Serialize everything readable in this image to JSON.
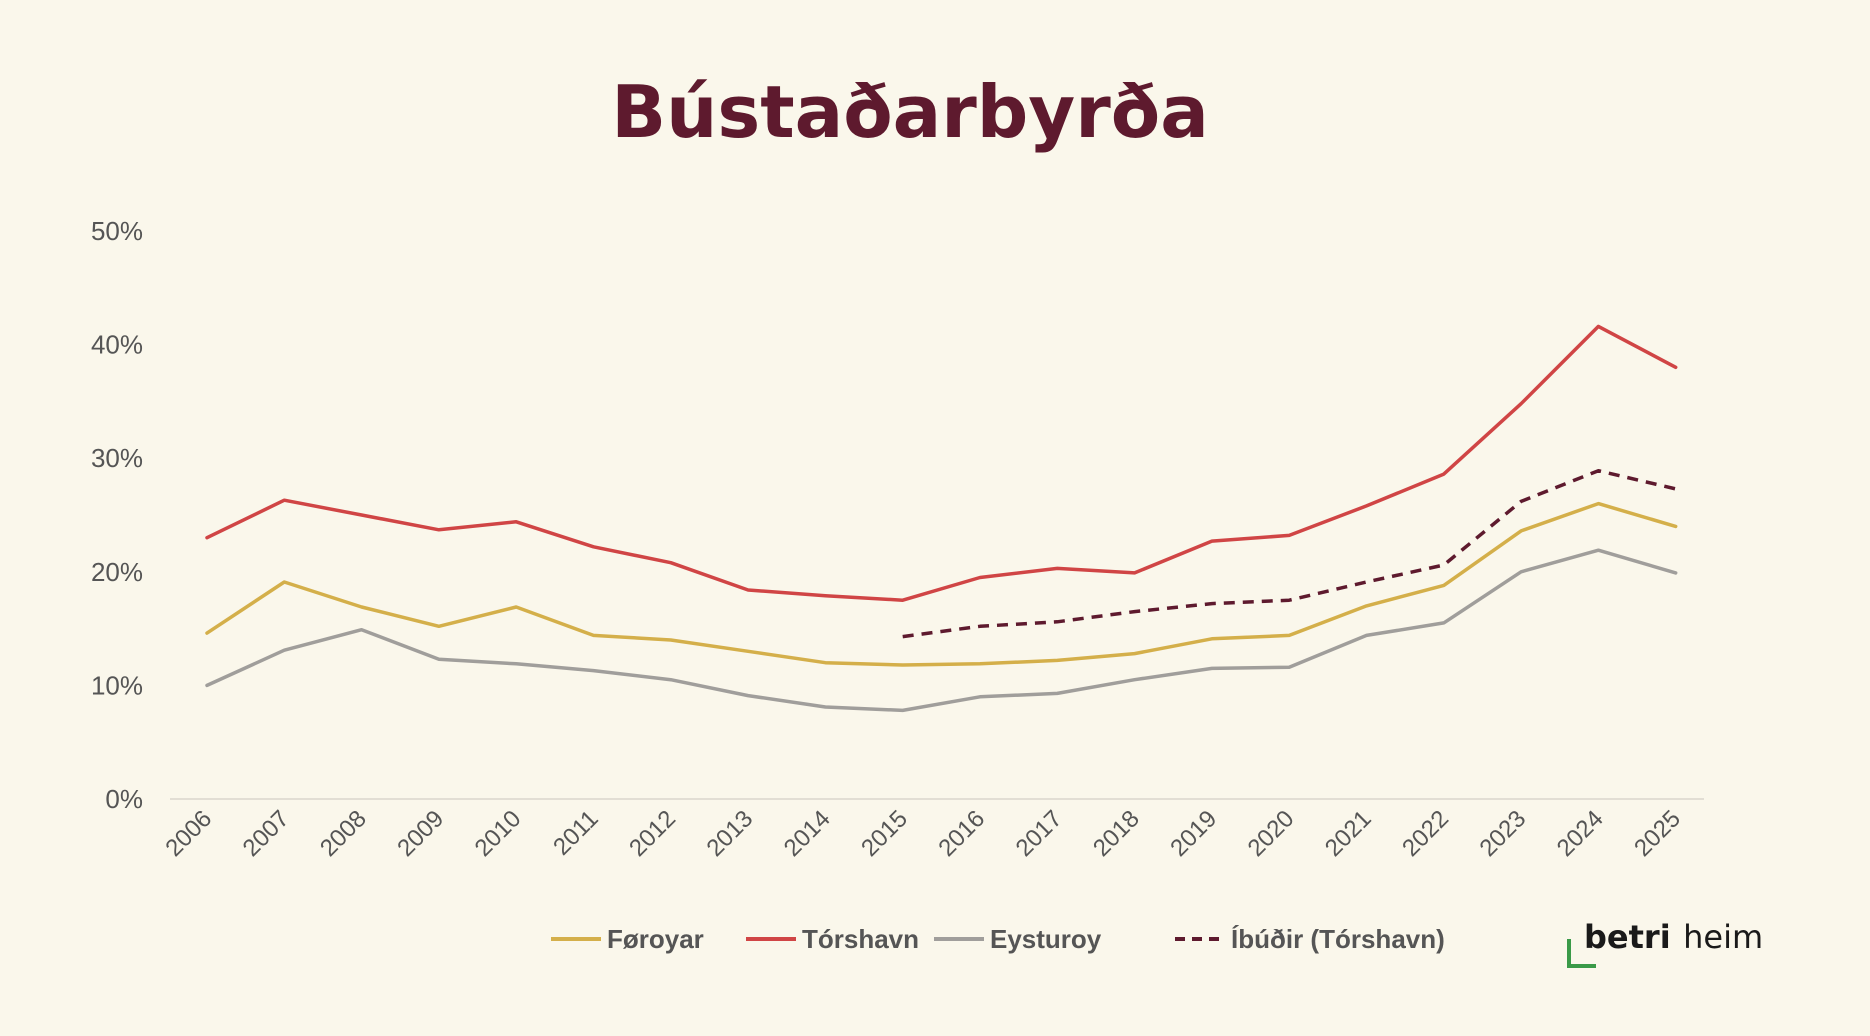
{
  "chart_data": {
    "type": "line",
    "title": "Bústaðarbyrða",
    "xlabel": "",
    "ylabel": "",
    "categories": [
      "2006",
      "2007",
      "2008",
      "2009",
      "2010",
      "2011",
      "2012",
      "2013",
      "2014",
      "2015",
      "2016",
      "2017",
      "2018",
      "2019",
      "2020",
      "2021",
      "2022",
      "2023",
      "2024",
      "2025"
    ],
    "ylim": [
      0,
      50
    ],
    "yticks": [
      "0%",
      "10%",
      "20%",
      "30%",
      "40%",
      "50%"
    ],
    "y_tick_values": [
      0,
      10,
      20,
      30,
      40,
      50
    ],
    "grid": false,
    "legend_position": "bottom",
    "series": [
      {
        "name": "Føroyar",
        "color": "#D4AF4A",
        "dashed": false,
        "values": [
          14.6,
          19.1,
          16.9,
          15.2,
          16.9,
          14.4,
          14.0,
          13.0,
          12.0,
          11.8,
          11.9,
          12.2,
          12.8,
          14.1,
          14.4,
          17.0,
          18.8,
          23.6,
          26.0,
          24.0
        ]
      },
      {
        "name": "Tórshavn",
        "color": "#D04545",
        "dashed": false,
        "values": [
          23.0,
          26.3,
          25.0,
          23.7,
          24.4,
          22.2,
          20.8,
          18.4,
          17.9,
          17.5,
          19.5,
          20.3,
          19.9,
          22.7,
          23.2,
          25.8,
          28.6,
          34.8,
          41.6,
          38.0
        ]
      },
      {
        "name": "Eysturoy",
        "color": "#A09E9B",
        "dashed": false,
        "values": [
          10.0,
          13.1,
          14.9,
          12.3,
          11.9,
          11.3,
          10.5,
          9.1,
          8.1,
          7.8,
          9.0,
          9.3,
          10.5,
          11.5,
          11.6,
          14.4,
          15.5,
          20.0,
          21.9,
          19.9
        ]
      },
      {
        "name": "Íbúðir (Tórshavn)",
        "color": "#5E1A2E",
        "dashed": true,
        "values": [
          null,
          null,
          null,
          null,
          null,
          null,
          null,
          null,
          null,
          14.3,
          15.2,
          15.6,
          16.5,
          17.2,
          17.5,
          19.1,
          20.6,
          26.2,
          28.9,
          27.3
        ]
      }
    ]
  },
  "logo": {
    "bold_text": "betri",
    "light_text": "heim",
    "accent_color": "#3A9A48"
  }
}
